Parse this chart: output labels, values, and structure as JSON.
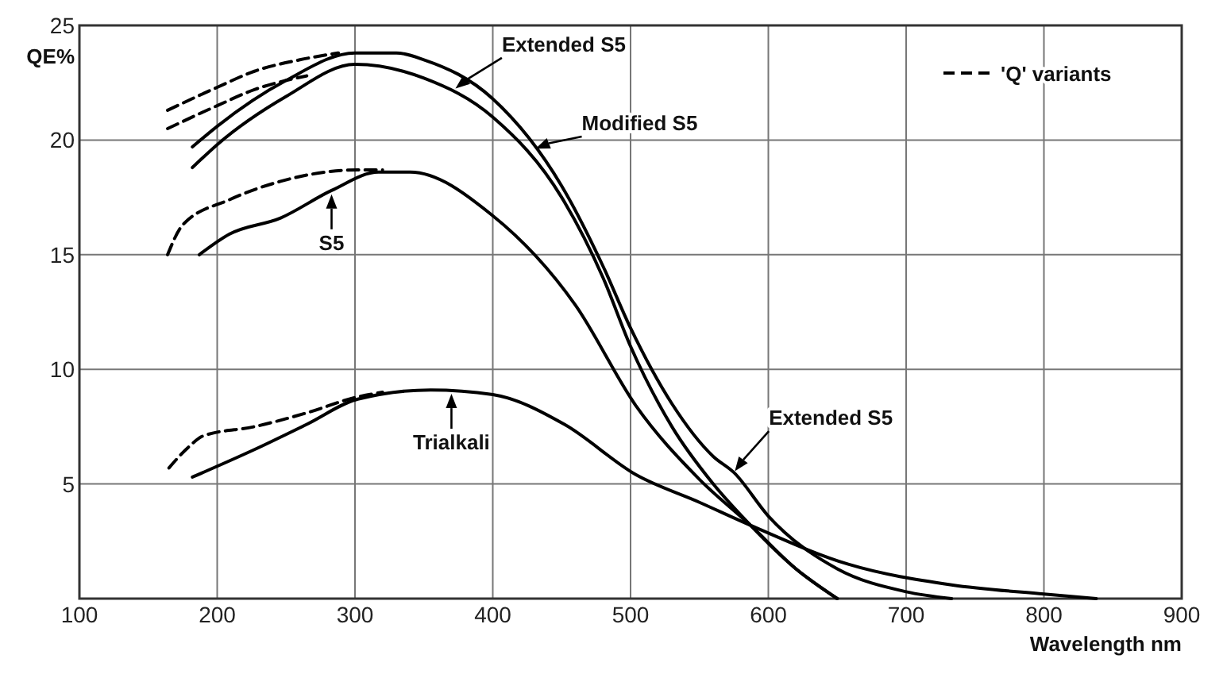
{
  "chart_data": {
    "type": "line",
    "xlabel": "Wavelength nm",
    "ylabel": "QE%",
    "xlim": [
      100,
      900
    ],
    "ylim": [
      0,
      25
    ],
    "xticks": [
      100,
      200,
      300,
      400,
      500,
      600,
      700,
      800,
      900
    ],
    "yticks": [
      5,
      10,
      15,
      20,
      25
    ],
    "grid": true,
    "legend": "top right",
    "series": [
      {
        "color": "#000000",
        "line_style": "solid",
        "x": [
          182,
          200,
          250,
          300,
          330,
          350,
          400,
          450,
          480,
          500,
          530,
          560,
          575,
          600,
          650,
          700,
          733
        ],
        "values": [
          19.7,
          20.6,
          22.6,
          23.8,
          23.8,
          23.5,
          21.8,
          18.0,
          14.5,
          11.8,
          8.5,
          6.2,
          5.5,
          3.6,
          1.3,
          0.3,
          0
        ]
      },
      {
        "color": "#000000",
        "line_style": "solid",
        "x": [
          182,
          200,
          250,
          300,
          350,
          400,
          450,
          480,
          500,
          530,
          560,
          587,
          620,
          650
        ],
        "values": [
          18.8,
          19.8,
          21.9,
          23.3,
          22.7,
          21.0,
          17.5,
          14.0,
          11.0,
          7.5,
          5.0,
          3.2,
          1.3,
          0
        ]
      },
      {
        "color": "#000000",
        "line_style": "solid",
        "x": [
          187,
          209,
          246,
          283,
          317,
          340,
          400,
          460,
          504,
          550,
          587,
          620,
          650
        ],
        "values": [
          15.0,
          15.9,
          16.6,
          17.8,
          18.6,
          18.6,
          16.7,
          12.8,
          8.4,
          5.2,
          3.2,
          1.3,
          0
        ]
      },
      {
        "color": "#000000",
        "line_style": "solid",
        "x": [
          182,
          227,
          265,
          302,
          355,
          400,
          452,
          504,
          550,
          587,
          658,
          733,
          800,
          838
        ],
        "values": [
          5.3,
          6.5,
          7.6,
          8.7,
          9.1,
          8.9,
          7.6,
          5.4,
          4.2,
          3.2,
          1.5,
          0.6,
          0.2,
          0
        ]
      },
      {
        "name": "'Q' variants",
        "color": "#000000",
        "line_style": "dashed",
        "x": [
          164,
          200,
          227,
          260,
          288
        ],
        "values": [
          21.3,
          22.3,
          23.0,
          23.5,
          23.8
        ]
      },
      {
        "color": "#000000",
        "line_style": "dashed",
        "x": [
          164,
          200,
          227,
          250,
          265
        ],
        "values": [
          20.5,
          21.5,
          22.2,
          22.6,
          22.8
        ]
      },
      {
        "color": "#000000",
        "line_style": "dashed",
        "x": [
          164,
          175,
          209,
          246,
          302,
          320
        ],
        "values": [
          15.0,
          16.3,
          17.4,
          18.2,
          18.7,
          18.7
        ]
      },
      {
        "color": "#000000",
        "line_style": "dashed",
        "x": [
          165,
          179,
          190,
          227,
          265,
          302,
          320
        ],
        "values": [
          5.7,
          6.6,
          7.1,
          7.5,
          8.1,
          8.8,
          9.0
        ]
      }
    ],
    "annotations": [
      {
        "text": "Extended S5",
        "x": 372,
        "y": 22.2
      },
      {
        "text": "Modified S5",
        "x": 430,
        "y": 19.6
      },
      {
        "text": "S5",
        "x": 283,
        "y": 17.7
      },
      {
        "text": "Trialkali",
        "x": 370,
        "y": 9.0
      },
      {
        "text": "Extended S5",
        "x": 575,
        "y": 5.5
      }
    ]
  }
}
